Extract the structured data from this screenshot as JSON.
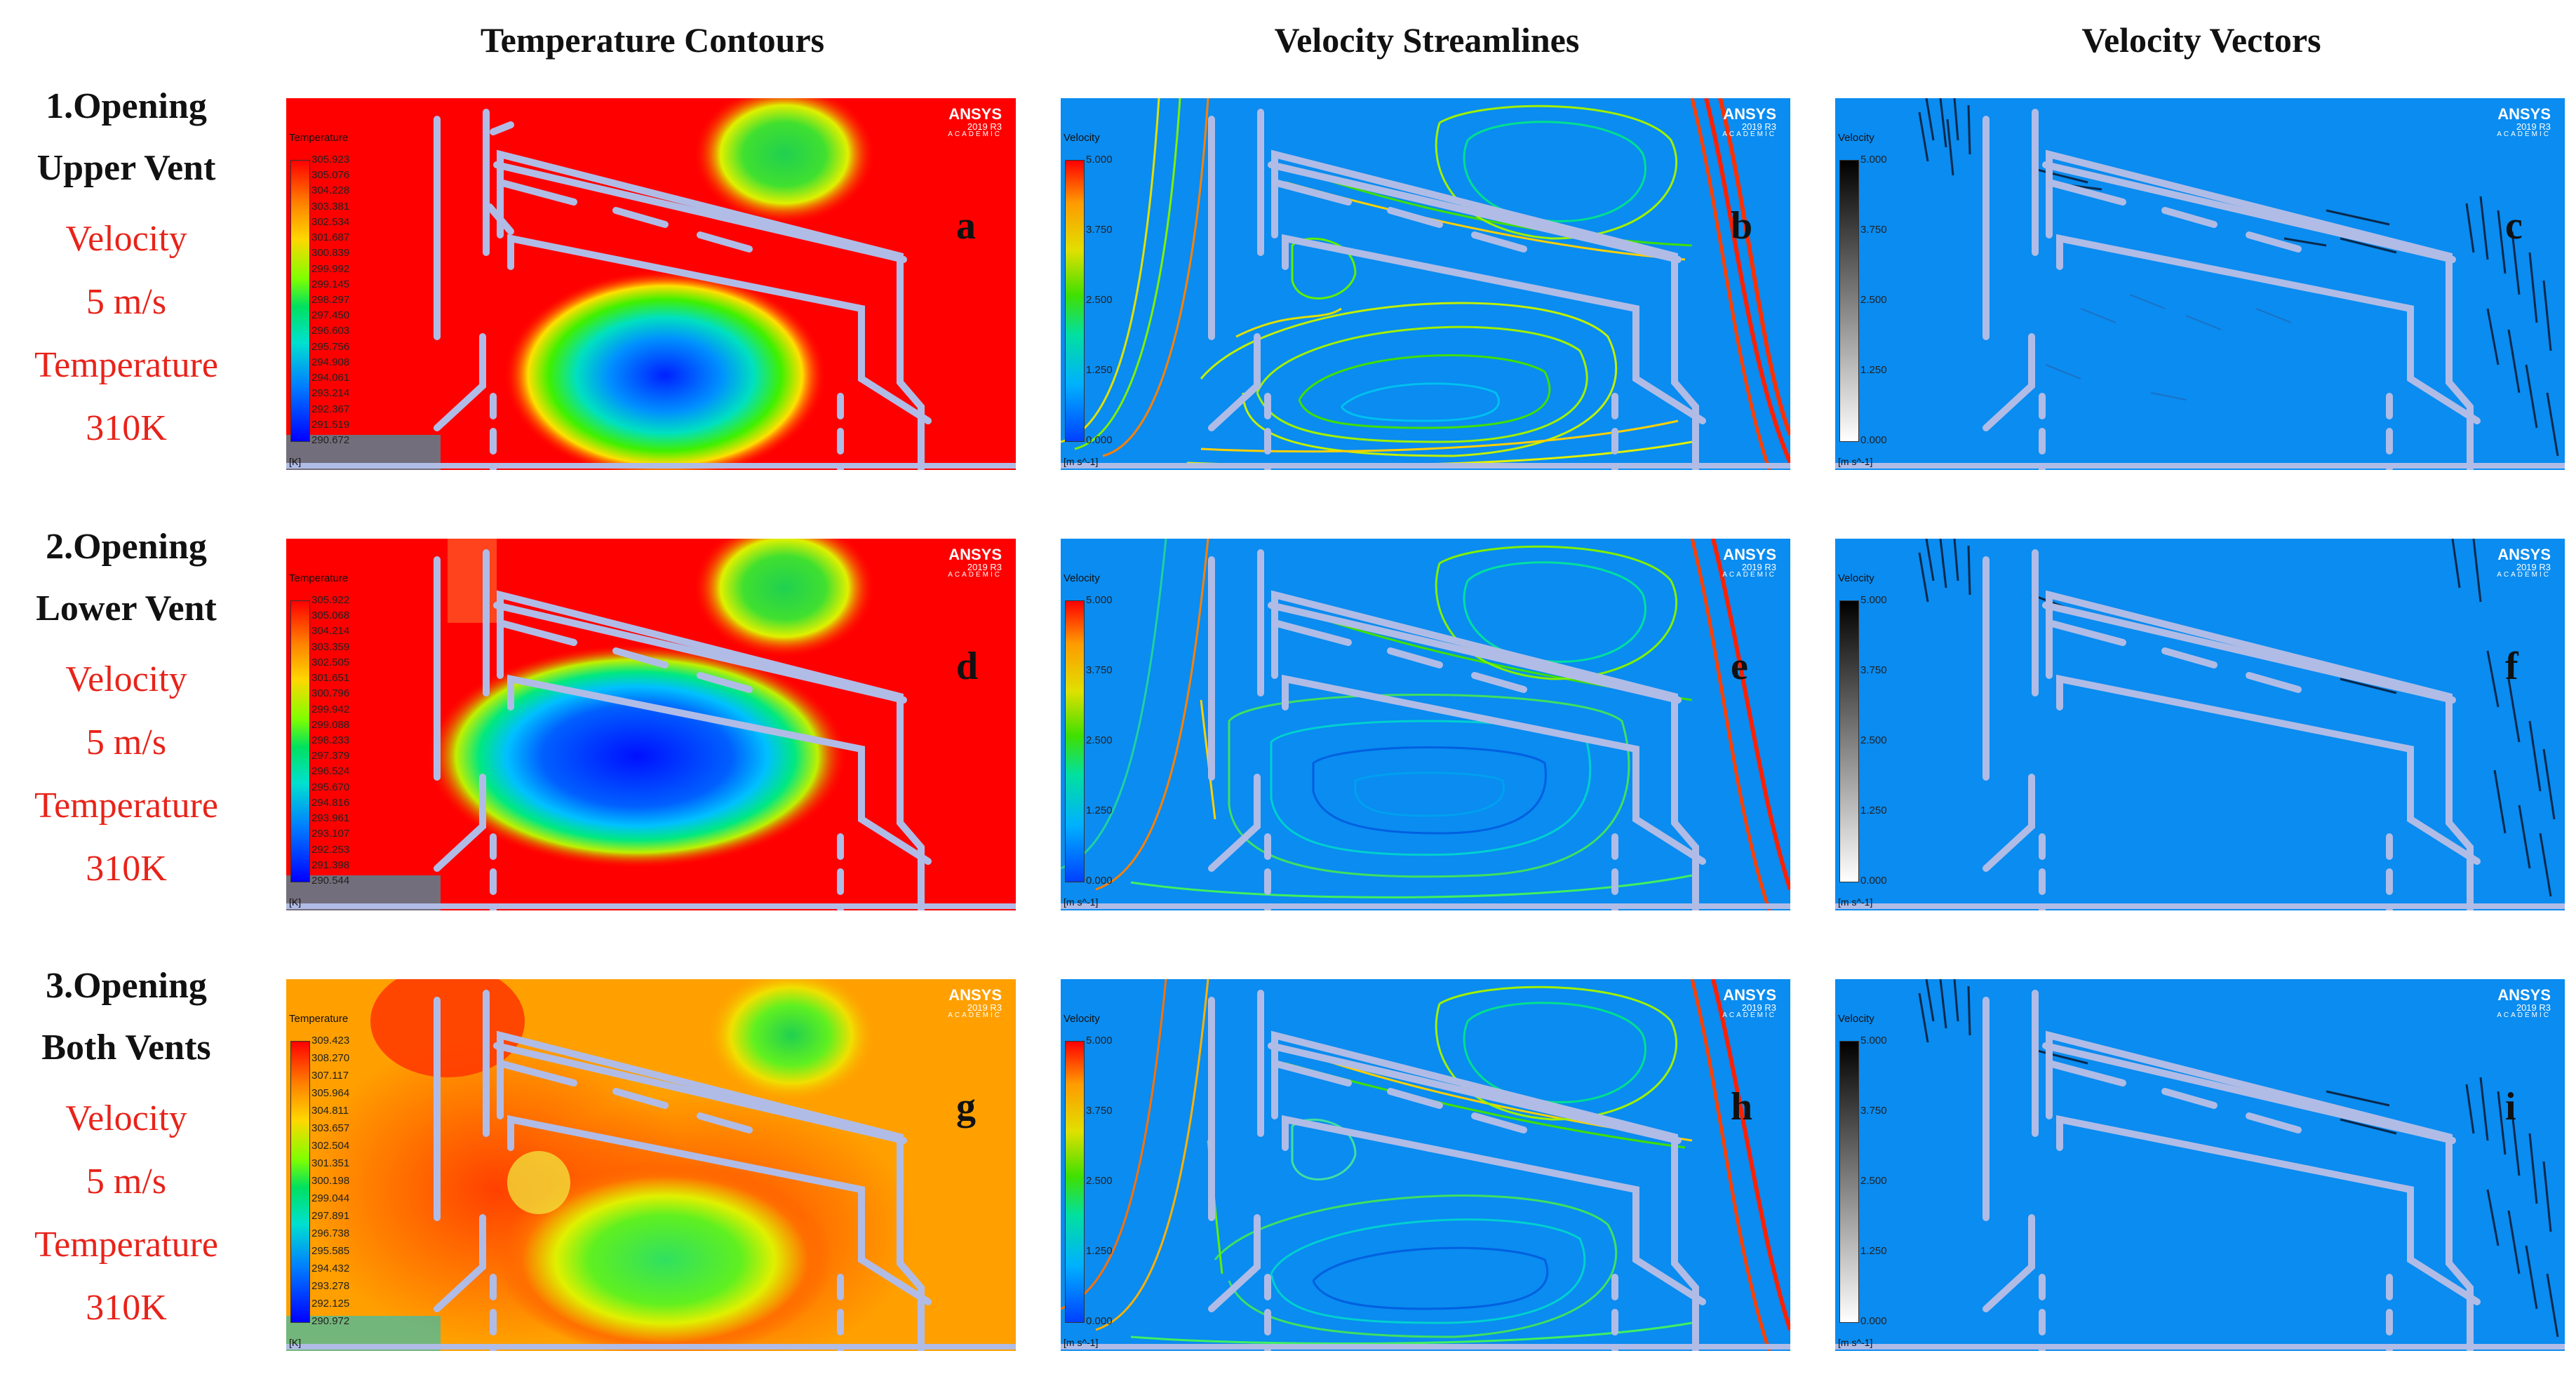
{
  "columns": [
    "Temperature Contours",
    "Velocity Streamlines",
    "Velocity Vectors"
  ],
  "rows": [
    {
      "title1": "1.Opening",
      "title2": "Upper Vent",
      "velocity_label": "Velocity",
      "velocity_value": "5 m/s",
      "temperature_label": "Temperature",
      "temperature_value": "310K"
    },
    {
      "title1": "2.Opening",
      "title2": "Lower Vent",
      "velocity_label": "Velocity",
      "velocity_value": "5 m/s",
      "temperature_label": "Temperature",
      "temperature_value": "310K"
    },
    {
      "title1": "3.Opening",
      "title2": "Both Vents",
      "velocity_label": "Velocity",
      "velocity_value": "5 m/s",
      "temperature_label": "Temperature",
      "temperature_value": "310K"
    }
  ],
  "panel_letters": [
    "a",
    "b",
    "c",
    "d",
    "e",
    "f",
    "g",
    "h",
    "i"
  ],
  "ansys": {
    "brand": "ANSYS",
    "version": "2019 R3",
    "edition": "ACADEMIC"
  },
  "legends": {
    "temperature": {
      "title": "Temperature",
      "unit": "[K]",
      "ticks_a": [
        "305.923",
        "305.076",
        "304.228",
        "303.381",
        "302.534",
        "301.687",
        "300.839",
        "299.992",
        "299.145",
        "298.297",
        "297.450",
        "296.603",
        "295.756",
        "294.908",
        "294.061",
        "293.214",
        "292.367",
        "291.519",
        "290.672"
      ],
      "ticks_d": [
        "305.922",
        "305.068",
        "304.214",
        "303.359",
        "302.505",
        "301.651",
        "300.796",
        "299.942",
        "299.088",
        "298.233",
        "297.379",
        "296.524",
        "295.670",
        "294.816",
        "293.961",
        "293.107",
        "292.253",
        "291.398",
        "290.544"
      ],
      "ticks_g": [
        "309.423",
        "308.270",
        "307.117",
        "305.964",
        "304.811",
        "303.657",
        "302.504",
        "301.351",
        "300.198",
        "299.044",
        "297.891",
        "296.738",
        "295.585",
        "294.432",
        "293.278",
        "292.125",
        "290.972"
      ]
    },
    "velocity": {
      "title": "Velocity",
      "unit": "[m s^-1]",
      "ticks": [
        "5.000",
        "3.750",
        "2.500",
        "1.250",
        "0.000"
      ]
    }
  },
  "colors": {
    "hot": "#ff0000",
    "flow_bg": "#0a8cf0",
    "label_red": "#e8231a",
    "structure": "#b0bce6"
  }
}
